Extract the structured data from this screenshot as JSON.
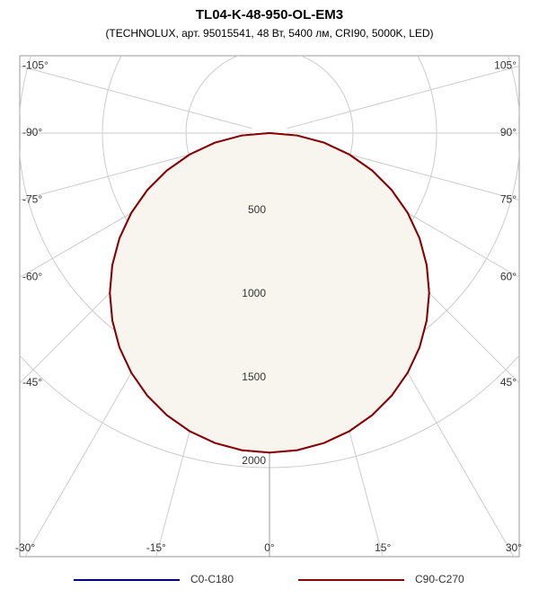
{
  "chart_data": {
    "type": "polar",
    "title": "TL04-K-48-950-OL-EM3",
    "subtitle": "(TECHNOLUX, арт. 95015541, 48 Вт, 5400 лм, CRI90, 5000K, LED)",
    "angles": [
      -90,
      -85,
      -80,
      -75,
      -70,
      -65,
      -60,
      -55,
      -50,
      -45,
      -40,
      -35,
      -30,
      -25,
      -20,
      -15,
      -10,
      -5,
      0,
      5,
      10,
      15,
      20,
      25,
      30,
      35,
      40,
      45,
      50,
      55,
      60,
      65,
      70,
      75,
      80,
      85,
      90
    ],
    "series": [
      {
        "name": "C0-C180",
        "color": "#000080",
        "values": [
          0,
          166,
          332,
          494,
          653,
          807,
          955,
          1096,
          1228,
          1351,
          1463,
          1565,
          1654,
          1731,
          1795,
          1845,
          1881,
          1903,
          1910,
          1903,
          1881,
          1845,
          1795,
          1731,
          1654,
          1565,
          1463,
          1351,
          1228,
          1096,
          955,
          807,
          653,
          494,
          332,
          166,
          0
        ]
      },
      {
        "name": "C90-C270",
        "color": "#8b0000",
        "values": [
          0,
          166,
          332,
          494,
          653,
          807,
          955,
          1096,
          1228,
          1351,
          1463,
          1565,
          1654,
          1731,
          1795,
          1845,
          1881,
          1903,
          1910,
          1903,
          1881,
          1845,
          1795,
          1731,
          1654,
          1565,
          1463,
          1351,
          1228,
          1096,
          955,
          807,
          653,
          494,
          332,
          166,
          0
        ]
      }
    ],
    "fill_color": "#f8f5ee",
    "rlim": [
      0,
      2000
    ],
    "rticks": [
      500,
      1000,
      1500,
      2000
    ],
    "angle_ticks": [
      {
        "value": -105,
        "label": "-105°"
      },
      {
        "value": -90,
        "label": "-90°"
      },
      {
        "value": -75,
        "label": "-75°"
      },
      {
        "value": -60,
        "label": "-60°"
      },
      {
        "value": -45,
        "label": "-45°"
      },
      {
        "value": -30,
        "label": "-30°"
      },
      {
        "value": -15,
        "label": "-15°"
      },
      {
        "value": 0,
        "label": "0°"
      },
      {
        "value": 15,
        "label": "15°"
      },
      {
        "value": 30,
        "label": "30°"
      },
      {
        "value": 45,
        "label": "45°"
      },
      {
        "value": 60,
        "label": "60°"
      },
      {
        "value": 75,
        "label": "75°"
      },
      {
        "value": 90,
        "label": "90°"
      },
      {
        "value": 105,
        "label": "105°"
      }
    ],
    "grid": true
  }
}
